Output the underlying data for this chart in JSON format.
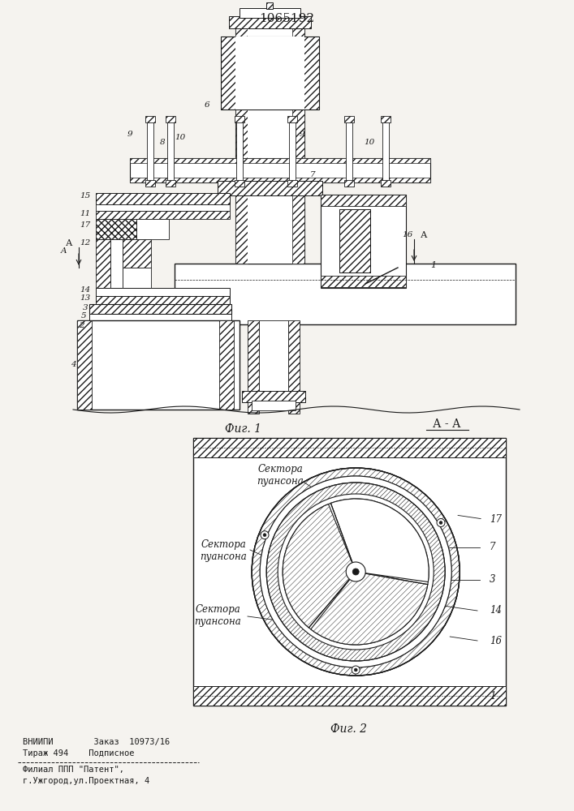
{
  "title": "1065192",
  "fig1_caption": "Фиг. 1",
  "fig2_caption": "Фиг. 2",
  "section_label": "А - А",
  "footer_line1": "ВНИИПИ        Заказ  10973/16",
  "footer_line2": "Тираж 494    Подписное",
  "footer_line3": "Филиал ППП \"Патент\",",
  "footer_line4": "г.Ужгород,ул.Проектная, 4",
  "label_sektora1": "Сектора\nпуансона",
  "label_sektora2": "Сектора\nпуансона",
  "label_sektora3": "Сектора\nпуансона",
  "bg_color": "#f5f3ef",
  "line_color": "#1a1a1a"
}
